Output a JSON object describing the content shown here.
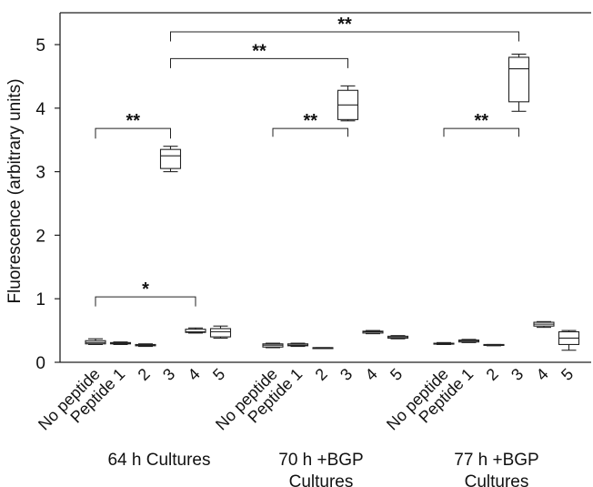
{
  "chart_data": {
    "type": "box",
    "ylabel": "Fluorescence (arbitrary units)",
    "xlabel": "",
    "ylim": [
      0,
      5.5
    ],
    "y_ticks": [
      0,
      1,
      2,
      3,
      4,
      5
    ],
    "grid": false,
    "legend": "none",
    "groups": [
      {
        "label": "64 h Cultures",
        "boxes": [
          {
            "category": "No peptide",
            "whisker_low": 0.28,
            "q1": 0.29,
            "median": 0.31,
            "q3": 0.34,
            "whisker_high": 0.37
          },
          {
            "category": "Peptide 1",
            "whisker_low": 0.28,
            "q1": 0.29,
            "median": 0.3,
            "q3": 0.31,
            "whisker_high": 0.32
          },
          {
            "category": "2",
            "whisker_low": 0.25,
            "q1": 0.26,
            "median": 0.27,
            "q3": 0.28,
            "whisker_high": 0.29
          },
          {
            "category": "3",
            "whisker_low": 3.0,
            "q1": 3.05,
            "median": 3.25,
            "q3": 3.35,
            "whisker_high": 3.4
          },
          {
            "category": "4",
            "whisker_low": 0.46,
            "q1": 0.47,
            "median": 0.48,
            "q3": 0.52,
            "whisker_high": 0.54
          },
          {
            "category": "5",
            "whisker_low": 0.38,
            "q1": 0.4,
            "median": 0.48,
            "q3": 0.53,
            "whisker_high": 0.57
          }
        ]
      },
      {
        "label": "70 h +BGP Cultures",
        "boxes": [
          {
            "category": "No peptide",
            "whisker_low": 0.23,
            "q1": 0.24,
            "median": 0.27,
            "q3": 0.29,
            "whisker_high": 0.3
          },
          {
            "category": "Peptide 1",
            "whisker_low": 0.25,
            "q1": 0.26,
            "median": 0.27,
            "q3": 0.29,
            "whisker_high": 0.3
          },
          {
            "category": "2",
            "whisker_low": 0.22,
            "q1": 0.22,
            "median": 0.23,
            "q3": 0.23,
            "whisker_high": 0.23
          },
          {
            "category": "3",
            "whisker_low": 3.8,
            "q1": 3.82,
            "median": 4.05,
            "q3": 4.28,
            "whisker_high": 4.35
          },
          {
            "category": "4",
            "whisker_low": 0.45,
            "q1": 0.46,
            "median": 0.48,
            "q3": 0.49,
            "whisker_high": 0.5
          },
          {
            "category": "5",
            "whisker_low": 0.37,
            "q1": 0.38,
            "median": 0.39,
            "q3": 0.41,
            "whisker_high": 0.42
          }
        ]
      },
      {
        "label": "77 h +BGP Cultures",
        "boxes": [
          {
            "category": "No peptide",
            "whisker_low": 0.28,
            "q1": 0.29,
            "median": 0.3,
            "q3": 0.3,
            "whisker_high": 0.31
          },
          {
            "category": "Peptide 1",
            "whisker_low": 0.31,
            "q1": 0.32,
            "median": 0.34,
            "q3": 0.35,
            "whisker_high": 0.36
          },
          {
            "category": "2",
            "whisker_low": 0.26,
            "q1": 0.27,
            "median": 0.27,
            "q3": 0.28,
            "whisker_high": 0.28
          },
          {
            "category": "3",
            "whisker_low": 3.95,
            "q1": 4.1,
            "median": 4.62,
            "q3": 4.8,
            "whisker_high": 4.85
          },
          {
            "category": "4",
            "whisker_low": 0.55,
            "q1": 0.57,
            "median": 0.6,
            "q3": 0.63,
            "whisker_high": 0.64
          },
          {
            "category": "5",
            "whisker_low": 0.19,
            "q1": 0.28,
            "median": 0.38,
            "q3": 0.48,
            "whisker_high": 0.5
          }
        ]
      }
    ],
    "significance": [
      {
        "label": "**",
        "from": [
          0,
          0
        ],
        "to": [
          0,
          3
        ],
        "level": 3.68,
        "tip": 3.52
      },
      {
        "label": "*",
        "from": [
          0,
          0
        ],
        "to": [
          0,
          4
        ],
        "level": 1.03,
        "tip": 0.88
      },
      {
        "label": "**",
        "from": [
          1,
          0
        ],
        "to": [
          1,
          3
        ],
        "level": 3.68,
        "tip": 3.55
      },
      {
        "label": "**",
        "from": [
          0,
          3
        ],
        "to": [
          1,
          3
        ],
        "level": 4.78,
        "tip": 4.63
      },
      {
        "label": "**",
        "from": [
          0,
          3
        ],
        "to": [
          2,
          3
        ],
        "level": 5.2,
        "tip": 5.05
      },
      {
        "label": "**",
        "from": [
          2,
          0
        ],
        "to": [
          2,
          3
        ],
        "level": 3.68,
        "tip": 3.55
      }
    ]
  }
}
